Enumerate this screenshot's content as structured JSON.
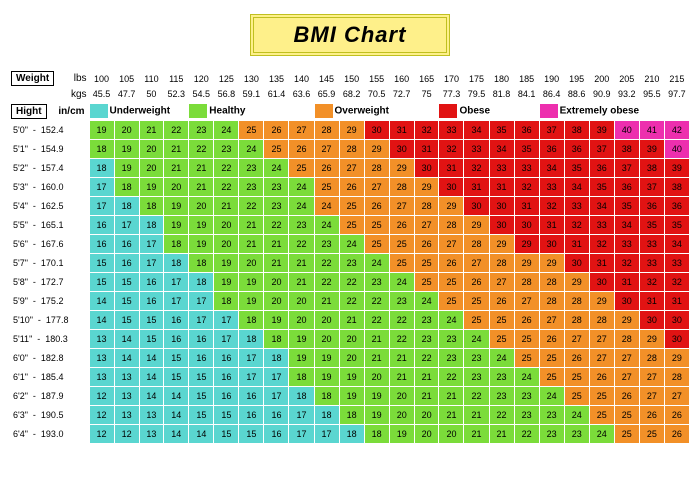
{
  "title": "BMI Chart",
  "labels": {
    "weight": "Weight",
    "lbs": "lbs",
    "kgs": "kgs",
    "hight": "Hight",
    "incm": "in/cm"
  },
  "categories": [
    {
      "name": "Underweight",
      "color": "#5ad6d0"
    },
    {
      "name": "Healthy",
      "color": "#7bdc3a"
    },
    {
      "name": "Overweight",
      "color": "#f29028"
    },
    {
      "name": "Obese",
      "color": "#e11313"
    },
    {
      "name": "Extremely obese",
      "color": "#ed2fae"
    }
  ],
  "colors": {
    "under": "#5ad6d0",
    "healthy": "#7bdc3a",
    "over": "#f29028",
    "obese": "#e11313",
    "extreme": "#ed2fae",
    "cell_text_light": "#222",
    "cell_text_dark": "#111"
  },
  "weights_lbs": [
    100,
    105,
    110,
    115,
    120,
    125,
    130,
    135,
    140,
    145,
    150,
    155,
    160,
    165,
    170,
    175,
    180,
    185,
    190,
    195,
    200,
    205,
    210,
    215
  ],
  "weights_kgs": [
    45.5,
    47.7,
    50.0,
    52.3,
    54.5,
    56.8,
    59.1,
    61.4,
    63.6,
    65.9,
    68.2,
    70.5,
    72.7,
    75.0,
    77.3,
    79.5,
    81.8,
    84.1,
    86.4,
    88.6,
    90.9,
    93.2,
    95.5,
    97.7
  ],
  "heights": [
    {
      "ft": "5'0\"",
      "cm": 152.4
    },
    {
      "ft": "5'1\"",
      "cm": 154.9
    },
    {
      "ft": "5'2\"",
      "cm": 157.4
    },
    {
      "ft": "5'3\"",
      "cm": 160.0
    },
    {
      "ft": "5'4\"",
      "cm": 162.5
    },
    {
      "ft": "5'5\"",
      "cm": 165.1
    },
    {
      "ft": "5'6\"",
      "cm": 167.6
    },
    {
      "ft": "5'7\"",
      "cm": 170.1
    },
    {
      "ft": "5'8\"",
      "cm": 172.7
    },
    {
      "ft": "5'9\"",
      "cm": 175.2
    },
    {
      "ft": "5'10\"",
      "cm": 177.8
    },
    {
      "ft": "5'11\"",
      "cm": 180.3
    },
    {
      "ft": "6'0\"",
      "cm": 182.8
    },
    {
      "ft": "6'1\"",
      "cm": 185.4
    },
    {
      "ft": "6'2\"",
      "cm": 187.9
    },
    {
      "ft": "6'3\"",
      "cm": 190.5
    },
    {
      "ft": "6'4\"",
      "cm": 193.0
    }
  ],
  "thresholds": {
    "under_max": 18.4,
    "healthy_max": 24.9,
    "over_max": 29.9,
    "obese_max": 39.9
  }
}
